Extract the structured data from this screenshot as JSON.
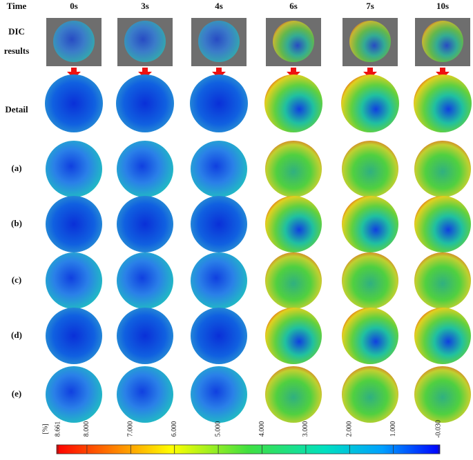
{
  "header": {
    "time": "Time",
    "columns": [
      "0s",
      "3s",
      "4s",
      "6s",
      "7s",
      "10s"
    ]
  },
  "rows": {
    "dic": [
      "DIC",
      "results"
    ],
    "detail": "Detail",
    "cases": [
      "(a)",
      "(b)",
      "(c)",
      "(d)",
      "(e)"
    ]
  },
  "colorbar": {
    "unit": "[%]",
    "range": [
      8.661,
      -0.03
    ],
    "ticks": [
      8.661,
      {
        "value": 8,
        "label": "8.000"
      },
      {
        "value": 7,
        "label": "7.000"
      },
      {
        "value": 6,
        "label": "6.000"
      },
      {
        "value": 5,
        "label": "5.000"
      },
      {
        "value": 4,
        "label": "4.000"
      },
      {
        "value": 3,
        "label": "3.000"
      },
      {
        "value": 2,
        "label": "2.000"
      },
      {
        "value": 1,
        "label": "1.000"
      },
      {
        "value": -0.03,
        "label": "-0.030"
      }
    ]
  }
}
